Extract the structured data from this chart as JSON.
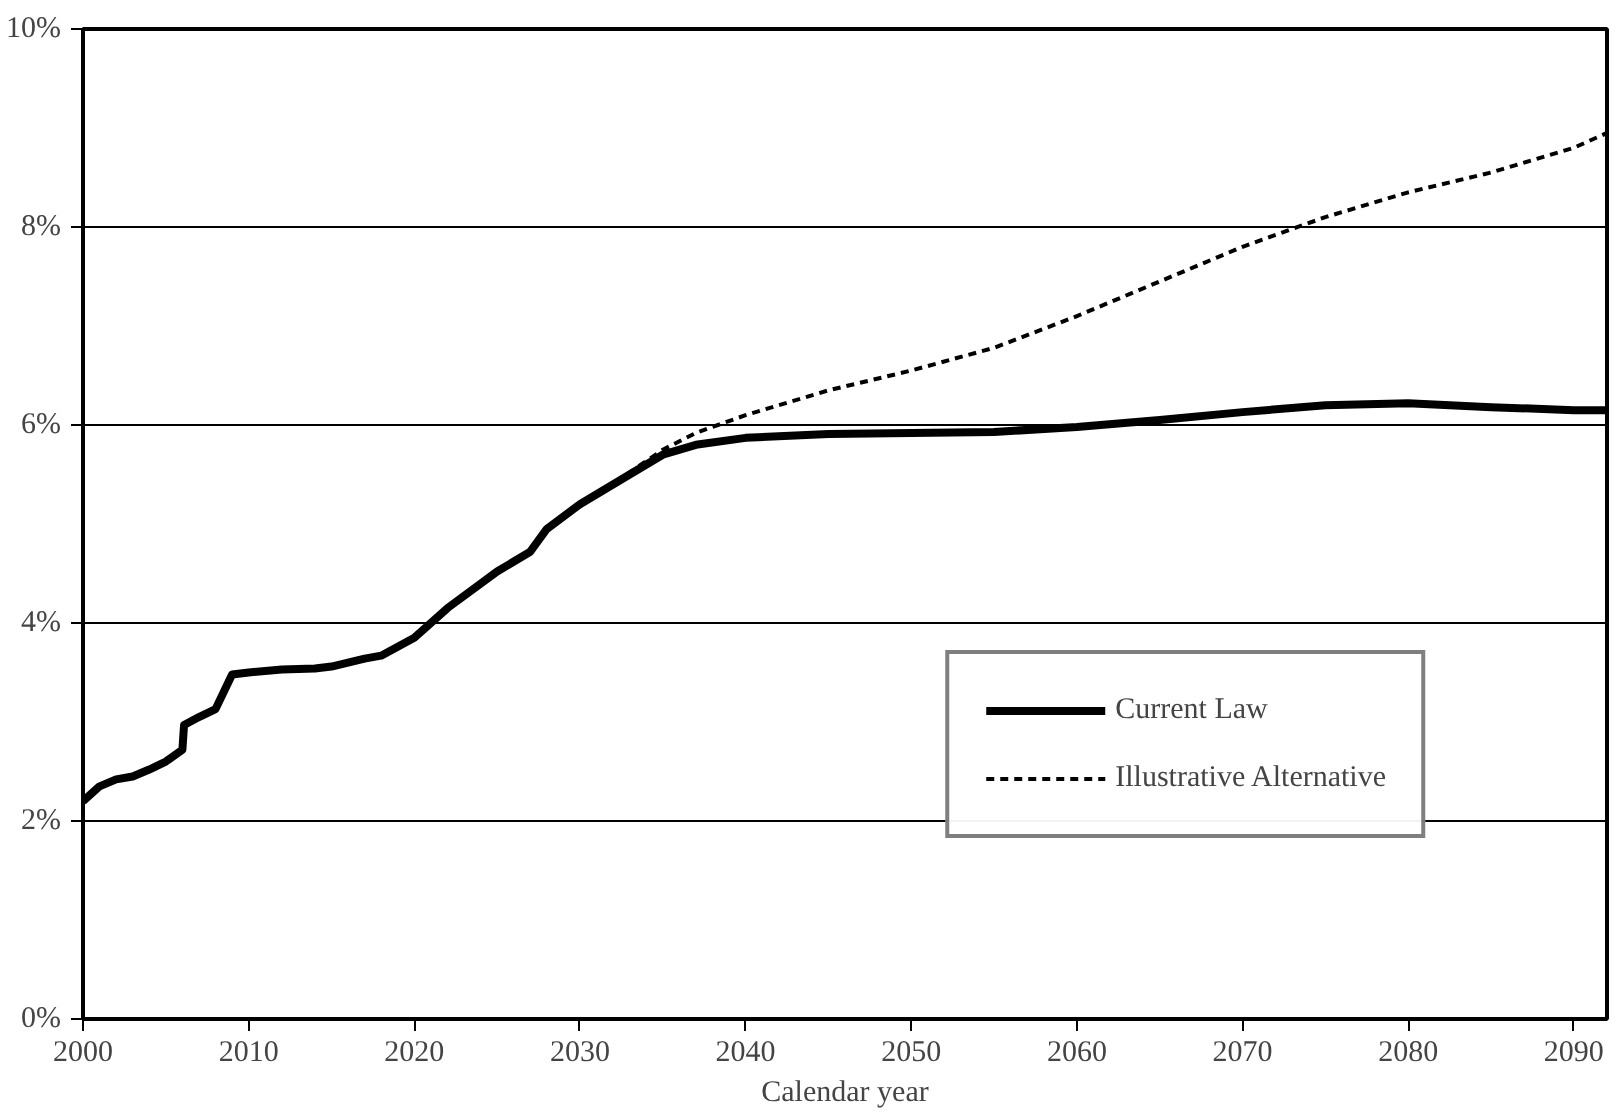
{
  "chart_data": {
    "type": "line",
    "xlabel": "Calendar year",
    "xlim": [
      2000,
      2092
    ],
    "xticks": [
      2000,
      2010,
      2020,
      2030,
      2040,
      2050,
      2060,
      2070,
      2080,
      2090
    ],
    "ylim": [
      0,
      10
    ],
    "yticks": [
      {
        "value": 0,
        "label": "0%"
      },
      {
        "value": 2,
        "label": "2%"
      },
      {
        "value": 4,
        "label": "4%"
      },
      {
        "value": 6,
        "label": "6%"
      },
      {
        "value": 8,
        "label": "8%"
      },
      {
        "value": 10,
        "label": "10%"
      }
    ],
    "grid": "y",
    "legend": "bottom right",
    "marker": "none",
    "series": [
      {
        "name": "Current Law",
        "color": "#000000",
        "line_style": "solid",
        "x": [
          2000,
          2001,
          2002,
          2003,
          2004,
          2005,
          2006,
          2006.1,
          2007,
          2008,
          2009,
          2010,
          2012,
          2014,
          2015,
          2016,
          2017,
          2018,
          2020,
          2022,
          2025,
          2027,
          2028,
          2030,
          2033,
          2035,
          2037,
          2040,
          2045,
          2050,
          2055,
          2060,
          2065,
          2070,
          2075,
          2080,
          2085,
          2090,
          2092
        ],
        "values": [
          2.2,
          2.35,
          2.42,
          2.45,
          2.52,
          2.6,
          2.72,
          2.97,
          3.05,
          3.13,
          3.48,
          3.5,
          3.53,
          3.54,
          3.56,
          3.6,
          3.64,
          3.67,
          3.85,
          4.15,
          4.52,
          4.72,
          4.95,
          5.2,
          5.5,
          5.7,
          5.8,
          5.87,
          5.91,
          5.92,
          5.93,
          5.98,
          6.05,
          6.13,
          6.2,
          6.22,
          6.18,
          6.15,
          6.15
        ]
      },
      {
        "name": "Illustrative Alternative",
        "color": "#000000",
        "line_style": "dashed",
        "x": [
          2030,
          2033,
          2035,
          2037,
          2040,
          2045,
          2050,
          2055,
          2060,
          2065,
          2070,
          2075,
          2080,
          2085,
          2090,
          2092
        ],
        "values": [
          5.2,
          5.52,
          5.75,
          5.92,
          6.1,
          6.35,
          6.55,
          6.78,
          7.1,
          7.45,
          7.8,
          8.1,
          8.35,
          8.55,
          8.8,
          8.95
        ]
      }
    ]
  }
}
